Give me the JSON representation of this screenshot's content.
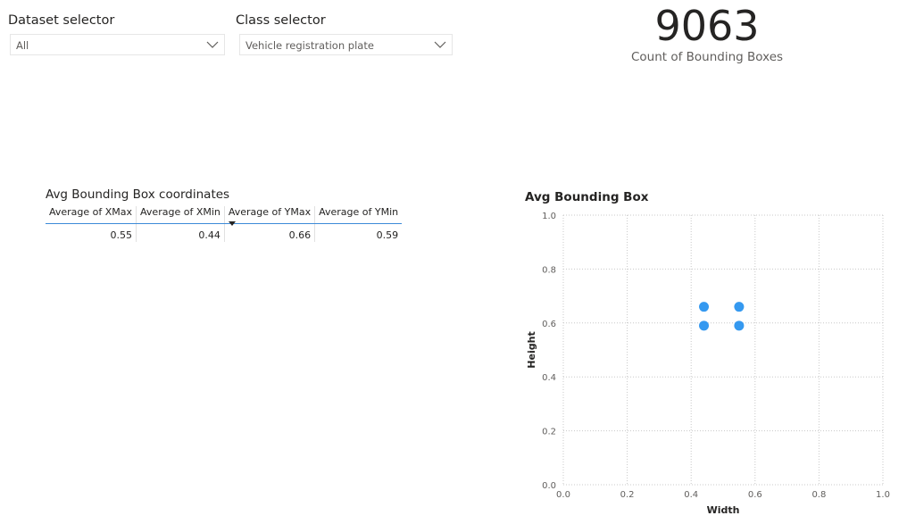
{
  "slicers": {
    "dataset": {
      "title": "Dataset selector",
      "value": "All"
    },
    "class": {
      "title": "Class selector",
      "value": "Vehicle registration plate"
    }
  },
  "card": {
    "value": "9063",
    "label": "Count of Bounding Boxes"
  },
  "table": {
    "title": "Avg Bounding Box coordinates",
    "headers": [
      "Average of XMax",
      "Average of XMin",
      "Average of YMax",
      "Average of YMin"
    ],
    "values": [
      "0.55",
      "0.44",
      "0.66",
      "0.59"
    ],
    "sorted_column": "Average of YMax"
  },
  "chart_data": {
    "type": "scatter",
    "title": "Avg Bounding Box",
    "xlabel": "Width",
    "ylabel": "Height",
    "xlim": [
      0.0,
      1.0
    ],
    "ylim": [
      0.0,
      1.0
    ],
    "xticks": [
      "0.0",
      "0.2",
      "0.4",
      "0.6",
      "0.8",
      "1.0"
    ],
    "yticks": [
      "0.0",
      "0.2",
      "0.4",
      "0.6",
      "0.8",
      "1.0"
    ],
    "grid": true,
    "color": "#3599f0",
    "points": [
      {
        "x": 0.44,
        "y": 0.66
      },
      {
        "x": 0.55,
        "y": 0.66
      },
      {
        "x": 0.44,
        "y": 0.59
      },
      {
        "x": 0.55,
        "y": 0.59
      }
    ]
  }
}
